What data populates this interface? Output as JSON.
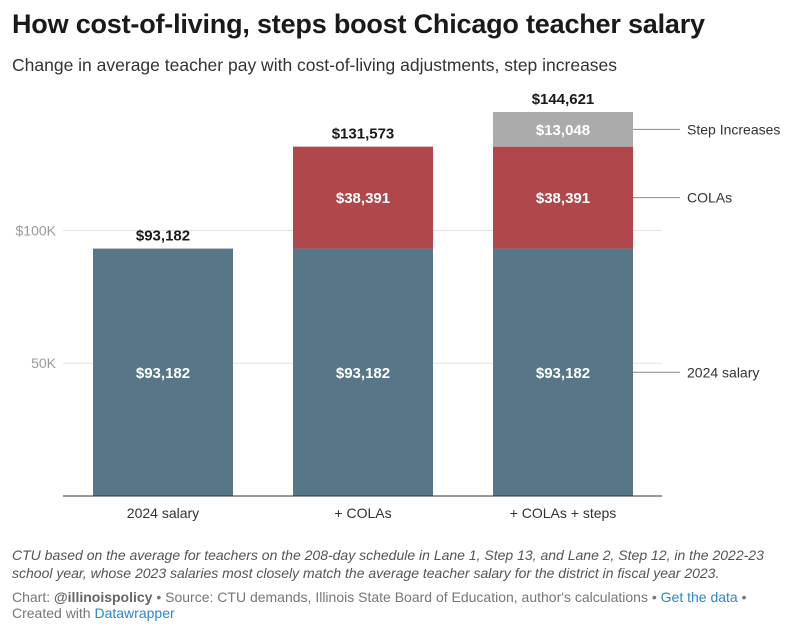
{
  "title": "How cost-of-living, steps boost Chicago teacher salary",
  "subtitle": "Change in average teacher pay with cost-of-living adjustments, step increases",
  "note": "CTU based on the average for teachers on the 208-day schedule in Lane 1, Step 13, and Lane 2, Step 12, in the 2022-23 school year, whose 2023 salaries most closely match the average teacher salary for the district in fiscal year 2023.",
  "footer": {
    "chart_prefix": "Chart: ",
    "author": "@illinoispolicy",
    "source_text": " • Source: CTU demands, Illinois State Board of Education, author's calculations • ",
    "get_data_label": "Get the data",
    "created_with_text": " • Created with ",
    "datawrapper_label": "Datawrapper"
  },
  "chart_data": {
    "type": "bar",
    "stacked": true,
    "categories": [
      "2024 salary",
      "+ COLAs",
      "+ COLAs + steps"
    ],
    "series": [
      {
        "name": "2024 salary",
        "values": [
          93182,
          93182,
          93182
        ],
        "labels": [
          "$93,182",
          "$93,182",
          "$93,182"
        ],
        "color": "#577688"
      },
      {
        "name": "COLAs",
        "values": [
          0,
          38391,
          38391
        ],
        "labels": [
          "",
          "$38,391",
          "$38,391"
        ],
        "color": "#b0474b"
      },
      {
        "name": "Step Increases",
        "values": [
          0,
          0,
          13048
        ],
        "labels": [
          "",
          "",
          "$13,048"
        ],
        "color": "#ababab"
      }
    ],
    "totals": [
      "$93,182",
      "$131,573",
      "$144,621"
    ],
    "y_ticks": [
      {
        "value": 50000,
        "label": "50K"
      },
      {
        "value": 100000,
        "label": "$100K"
      }
    ],
    "ylim": [
      0,
      144621
    ],
    "grid": true,
    "legend": "right, inline labels next to last bar"
  }
}
